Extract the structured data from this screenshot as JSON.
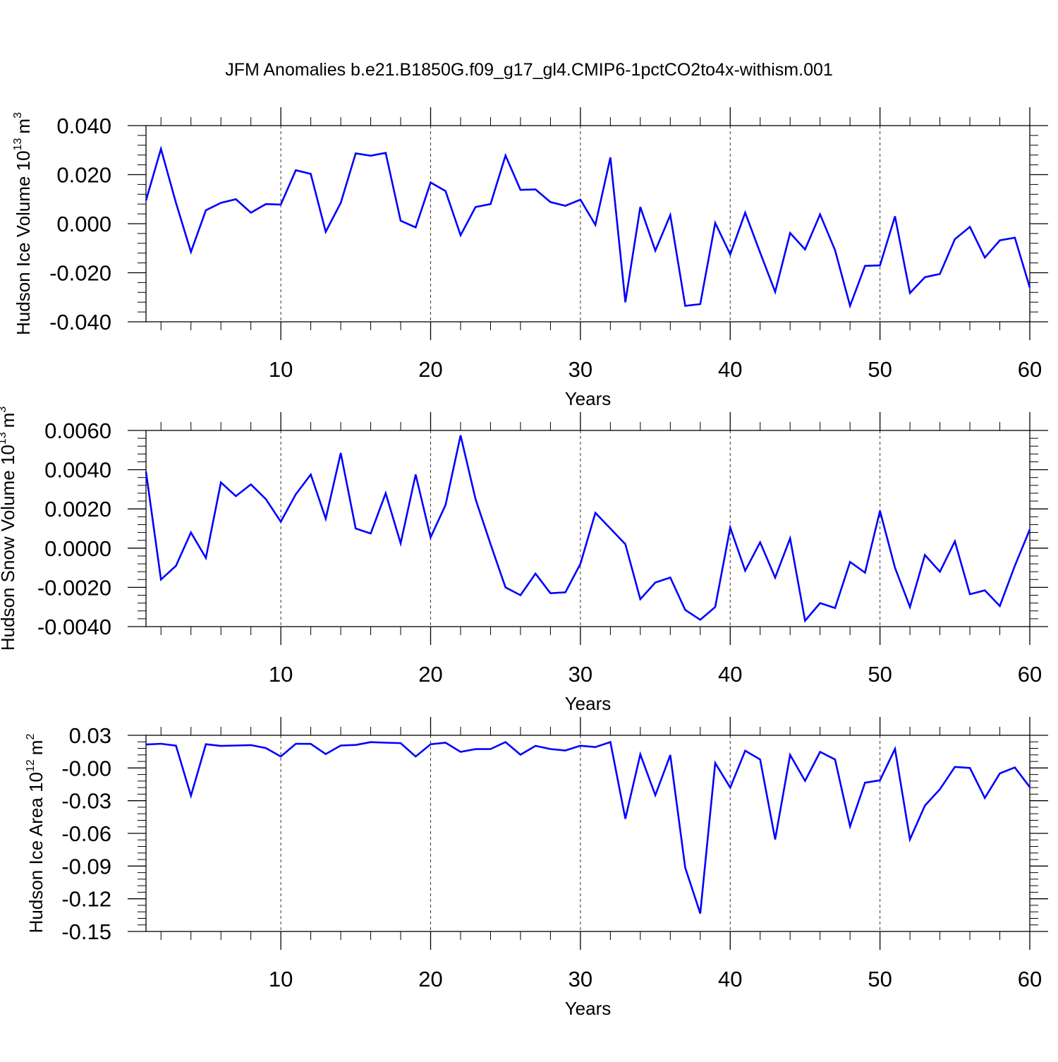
{
  "title": "JFM Anomalies b.e21.B1850G.f09_g17_gl4.CMIP6-1pctCO2to4x-withism.001",
  "line_color": "#0000ff",
  "chart_data": [
    {
      "type": "line",
      "ylabel": "Hudson Ice Volume 10",
      "ylabel_exp": "13",
      "ylabel_unit": "m",
      "ylabel_unit_exp": "3",
      "xlabel": "Years",
      "xlim": [
        1,
        60
      ],
      "ylim": [
        -0.04,
        0.04
      ],
      "x_ticks": [
        10,
        20,
        30,
        40,
        50,
        60
      ],
      "x_tick_labels": [
        "10",
        "20",
        "30",
        "40",
        "50",
        "60"
      ],
      "y_ticks": [
        -0.04,
        -0.02,
        0.0,
        0.02,
        0.04
      ],
      "y_tick_labels": [
        "-0.040",
        "-0.020",
        "0.000",
        "0.020",
        "0.040"
      ],
      "grid": "vertical dashed at major x ticks",
      "x": [
        1,
        2,
        3,
        4,
        5,
        6,
        7,
        8,
        9,
        10,
        11,
        12,
        13,
        14,
        15,
        16,
        17,
        18,
        19,
        20,
        21,
        22,
        23,
        24,
        25,
        26,
        27,
        28,
        29,
        30,
        31,
        32,
        33,
        34,
        35,
        36,
        37,
        38,
        39,
        40,
        41,
        42,
        43,
        44,
        45,
        46,
        47,
        48,
        49,
        50,
        51,
        52,
        53,
        54,
        55,
        56,
        57,
        58,
        59,
        60
      ],
      "values": [
        0.0095,
        0.0305,
        0.0085,
        -0.0115,
        0.0055,
        0.0085,
        0.01,
        0.0045,
        0.008,
        0.0078,
        0.0218,
        0.0203,
        -0.0033,
        0.0085,
        0.0287,
        0.0277,
        0.0289,
        0.0012,
        -0.0015,
        0.0168,
        0.0133,
        -0.0047,
        0.0068,
        0.008,
        0.0278,
        0.0138,
        0.014,
        0.0088,
        0.0073,
        0.0098,
        -0.0005,
        0.027,
        -0.032,
        0.0068,
        -0.011,
        0.0035,
        -0.0335,
        -0.0328,
        0.0003,
        -0.0125,
        0.0045,
        -0.0118,
        -0.0278,
        -0.0038,
        -0.0105,
        0.0038,
        -0.0108,
        -0.0335,
        -0.0172,
        -0.017,
        0.003,
        -0.0283,
        -0.0218,
        -0.0205,
        -0.0063,
        -0.0013,
        -0.0138,
        -0.0068,
        -0.0057,
        -0.026
      ]
    },
    {
      "type": "line",
      "ylabel": "Hudson Snow Volume 10",
      "ylabel_exp": "13",
      "ylabel_unit": "m",
      "ylabel_unit_exp": "3",
      "xlabel": "Years",
      "xlim": [
        1,
        60
      ],
      "ylim": [
        -0.004,
        0.006
      ],
      "x_ticks": [
        10,
        20,
        30,
        40,
        50,
        60
      ],
      "x_tick_labels": [
        "10",
        "20",
        "30",
        "40",
        "50",
        "60"
      ],
      "y_ticks": [
        -0.004,
        -0.002,
        0.0,
        0.002,
        0.004,
        0.006
      ],
      "y_tick_labels": [
        "-0.0040",
        "-0.0020",
        "0.0000",
        "0.0020",
        "0.0040",
        "0.0060"
      ],
      "grid": "vertical dashed at major x ticks",
      "x": [
        1,
        2,
        3,
        4,
        5,
        6,
        7,
        8,
        9,
        10,
        11,
        12,
        13,
        14,
        15,
        16,
        17,
        18,
        19,
        20,
        21,
        22,
        23,
        24,
        25,
        26,
        27,
        28,
        29,
        30,
        31,
        32,
        33,
        34,
        35,
        36,
        37,
        38,
        39,
        40,
        41,
        42,
        43,
        44,
        45,
        46,
        47,
        48,
        49,
        50,
        51,
        52,
        53,
        54,
        55,
        56,
        57,
        58,
        59,
        60
      ],
      "values": [
        0.0039,
        -0.0016,
        -0.0009,
        0.0008,
        -0.0005,
        0.00335,
        0.00265,
        0.00325,
        0.0025,
        0.00135,
        0.00275,
        0.00375,
        0.0015,
        0.00485,
        0.001,
        0.00075,
        0.0028,
        0.00025,
        0.00375,
        0.00055,
        0.0022,
        0.00575,
        0.0025,
        0.0002,
        -0.002,
        -0.0024,
        -0.0013,
        -0.0023,
        -0.00225,
        -0.0008,
        0.0018,
        0.001,
        0.0002,
        -0.0026,
        -0.00175,
        -0.0015,
        -0.00315,
        -0.00365,
        -0.003,
        0.00105,
        -0.00115,
        0.0003,
        -0.0015,
        0.0005,
        -0.0037,
        -0.0028,
        -0.00305,
        -0.0007,
        -0.00125,
        0.0019,
        -0.001,
        -0.003,
        -0.00035,
        -0.0012,
        0.00035,
        -0.00235,
        -0.00215,
        -0.00295,
        -0.0009,
        0.00095
      ]
    },
    {
      "type": "line",
      "ylabel": "Hudson Ice Area 10",
      "ylabel_exp": "12",
      "ylabel_unit": "m",
      "ylabel_unit_exp": "2",
      "xlabel": "Years",
      "xlim": [
        1,
        60
      ],
      "ylim": [
        -0.15,
        0.03
      ],
      "x_ticks": [
        10,
        20,
        30,
        40,
        50,
        60
      ],
      "x_tick_labels": [
        "10",
        "20",
        "30",
        "40",
        "50",
        "60"
      ],
      "y_ticks": [
        -0.15,
        -0.12,
        -0.09,
        -0.06,
        -0.03,
        0.0,
        0.03
      ],
      "y_tick_labels": [
        "-0.15",
        "-0.12",
        "-0.09",
        "-0.06",
        "-0.03",
        "-0.00",
        "0.03"
      ],
      "grid": "vertical dashed at major x ticks",
      "x": [
        1,
        2,
        3,
        4,
        5,
        6,
        7,
        8,
        9,
        10,
        11,
        12,
        13,
        14,
        15,
        16,
        17,
        18,
        19,
        20,
        21,
        22,
        23,
        24,
        25,
        26,
        27,
        28,
        29,
        30,
        31,
        32,
        33,
        34,
        35,
        36,
        37,
        38,
        39,
        40,
        41,
        42,
        43,
        44,
        45,
        46,
        47,
        48,
        49,
        50,
        51,
        52,
        53,
        54,
        55,
        56,
        57,
        58,
        59,
        60
      ],
      "values": [
        0.0215,
        0.0222,
        0.0205,
        -0.0255,
        0.0218,
        0.0202,
        0.0206,
        0.021,
        0.0183,
        0.0105,
        0.0222,
        0.0221,
        0.0128,
        0.0206,
        0.0211,
        0.0237,
        0.0232,
        0.0228,
        0.0105,
        0.0218,
        0.0232,
        0.0148,
        0.0173,
        0.0174,
        0.0238,
        0.0122,
        0.0203,
        0.0174,
        0.0161,
        0.0204,
        0.0192,
        0.0238,
        -0.0465,
        0.0125,
        -0.025,
        0.0118,
        -0.0915,
        -0.1335,
        0.0045,
        -0.018,
        0.0158,
        0.0078,
        -0.0655,
        0.012,
        -0.0118,
        0.0148,
        0.0078,
        -0.0535,
        -0.0135,
        -0.0113,
        0.0175,
        -0.0655,
        -0.0345,
        -0.0195,
        0.001,
        0.0,
        -0.0275,
        -0.005,
        0.0005,
        -0.0175
      ]
    }
  ]
}
